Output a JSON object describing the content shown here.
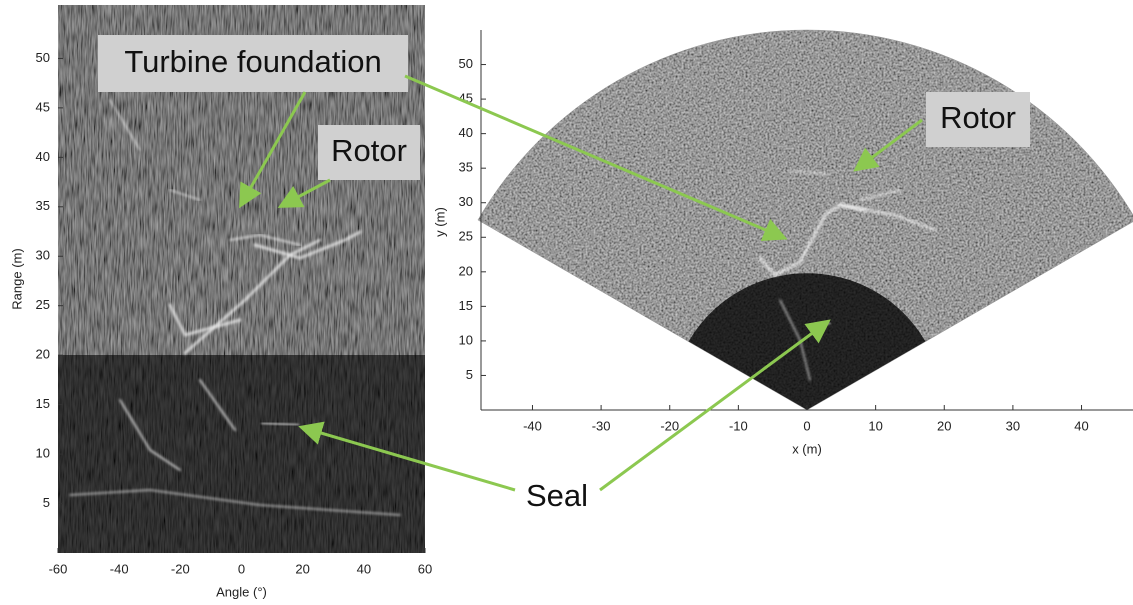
{
  "chart_data": [
    {
      "type": "sonar-image",
      "xlabel": "Angle (°)",
      "ylabel": "Range (m)",
      "xlim": [
        -60,
        60
      ],
      "ylim": [
        0,
        55.4
      ],
      "xticks": [
        -60,
        -40,
        -20,
        0,
        20,
        40,
        60
      ],
      "yticks": [
        5,
        10,
        15,
        20,
        25,
        30,
        35,
        40,
        45,
        50
      ]
    },
    {
      "type": "sonar-fan",
      "xlabel": "x (m)",
      "ylabel": "y (m)",
      "xlim": [
        -47.5,
        47.5
      ],
      "ylim": [
        0,
        55
      ],
      "xticks": [
        -40,
        -30,
        -20,
        -10,
        0,
        10,
        20,
        30,
        40
      ],
      "yticks": [
        5,
        10,
        15,
        20,
        25,
        30,
        35,
        40,
        45,
        50
      ]
    }
  ],
  "annotations": [
    "Turbine foundation",
    "Rotor",
    "Rotor",
    "Seal"
  ]
}
